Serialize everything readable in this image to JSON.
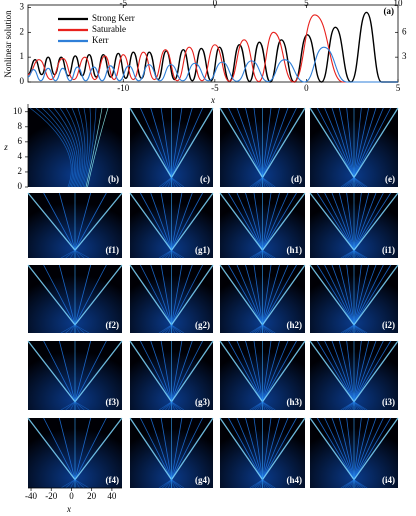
{
  "chart_data": {
    "type": "line",
    "ylabel": "Nonlinear solution",
    "xlabel": "x",
    "annotation": "(a)",
    "xlim": [
      -15.2,
      5
    ],
    "xticks": [
      -10,
      -5,
      0,
      5
    ],
    "x2lim": [
      -10.2,
      10
    ],
    "x2ticks": [
      -5,
      0,
      5,
      10
    ],
    "ylim": [
      0,
      3.1
    ],
    "yticks": [
      0,
      1,
      2,
      3
    ],
    "y2lim": [
      0,
      9.3
    ],
    "y2ticks": [
      3,
      6
    ],
    "series": [
      {
        "name": "Strong Kerr",
        "color": "#000000",
        "x": [
          -15.2,
          -14.81,
          -14.45,
          -14.1,
          -13.75,
          -13.39,
          -13.0,
          -12.62,
          -12.24,
          -11.86,
          -11.47,
          -11.09,
          -10.68,
          -10.27,
          -9.86,
          -9.45,
          -9.0,
          -8.58,
          -8.1,
          -7.65,
          -7.2,
          -6.72,
          -6.23,
          -5.74,
          -5.2,
          -4.75,
          -4.2,
          -3.66,
          -3.1,
          -2.57,
          -1.97,
          -1.37,
          -0.66,
          0.05,
          0.82,
          1.58,
          2.43,
          3.28,
          4.1,
          5
        ],
        "values": [
          0.3,
          0.9,
          0.3,
          1.0,
          0.3,
          1.0,
          0.25,
          1.05,
          0.25,
          1.1,
          0.2,
          1.1,
          0.2,
          1.15,
          0.15,
          1.2,
          0.15,
          1.2,
          0.1,
          1.25,
          0.1,
          1.3,
          0.05,
          1.35,
          0.05,
          1.4,
          0.02,
          1.5,
          0.02,
          1.6,
          0,
          1.7,
          0,
          1.9,
          0,
          2.2,
          0,
          2.8,
          0,
          0
        ]
      },
      {
        "name": "Saturable",
        "color": "#e8211d",
        "x": [
          -15.2,
          -14.6,
          -13.95,
          -13.3,
          -12.7,
          -12.1,
          -11.55,
          -11.0,
          -10.5,
          -10.0,
          -9.45,
          -8.9,
          -8.3,
          -7.7,
          -7.05,
          -6.4,
          -5.7,
          -5.0,
          -4.2,
          -3.4,
          -2.6,
          -1.8,
          -0.7,
          0.45,
          2.0,
          5
        ],
        "values": [
          0.3,
          0.9,
          0.1,
          0.95,
          0.1,
          1.0,
          0.1,
          1.05,
          0.1,
          1.1,
          0.1,
          1.2,
          0.1,
          1.3,
          0.05,
          1.4,
          0.05,
          1.5,
          0.03,
          1.7,
          0.02,
          2.0,
          0,
          2.7,
          0,
          0
        ]
      },
      {
        "name": "Kerr",
        "color": "#2f7fd8",
        "x": [
          -15.2,
          -14.9,
          -14.5,
          -14.1,
          -13.7,
          -13.3,
          -12.9,
          -12.5,
          -12.05,
          -11.6,
          -11.15,
          -10.7,
          -10.2,
          -9.7,
          -9.15,
          -8.6,
          -8.0,
          -7.4,
          -6.75,
          -6.1,
          -5.35,
          -4.6,
          -3.8,
          -3.0,
          -2.1,
          -1.2,
          -0.1,
          0.95,
          2.2,
          5
        ],
        "values": [
          0.2,
          0.5,
          0.05,
          0.55,
          0.05,
          0.55,
          0.05,
          0.6,
          0.05,
          0.6,
          0.05,
          0.65,
          0.05,
          0.65,
          0.05,
          0.7,
          0.05,
          0.7,
          0.05,
          0.75,
          0.05,
          0.8,
          0.03,
          0.85,
          0.02,
          0.9,
          0,
          1.4,
          0,
          0
        ]
      }
    ]
  },
  "panels": {
    "labels": [
      "(b)",
      "(c)",
      "(d)",
      "(e)",
      "(f1)",
      "(g1)",
      "(h1)",
      "(i1)",
      "(f2)",
      "(g2)",
      "(h2)",
      "(i2)",
      "(f3)",
      "(g3)",
      "(h3)",
      "(i3)",
      "(f4)",
      "(g4)",
      "(h4)",
      "(i4)"
    ],
    "zlabel": "z",
    "zlim": [
      0,
      10.5
    ],
    "zticks": [
      0,
      2,
      4,
      6,
      8,
      10
    ],
    "xlabel": "x",
    "xlim": [
      -43,
      50
    ],
    "xticks": [
      -40,
      -20,
      0,
      20,
      40
    ]
  }
}
